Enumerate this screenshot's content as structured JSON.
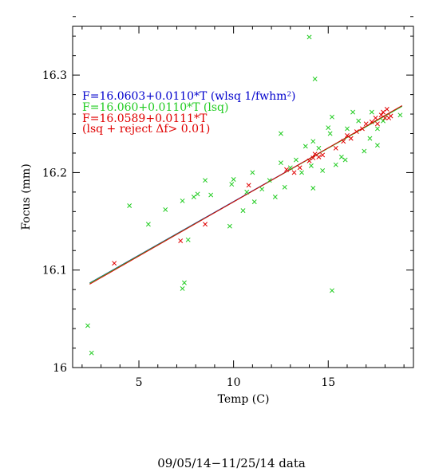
{
  "chart_data": {
    "type": "scatter",
    "title": "",
    "xlabel": "Temp (C)",
    "ylabel": "Focus (mm)",
    "caption": "09/05/14−11/25/14 data",
    "xlim": [
      1.5,
      19.5
    ],
    "ylim": [
      16.0,
      16.35
    ],
    "x_ticks": [
      5,
      10,
      15
    ],
    "x_tick_labels": [
      "5",
      "10",
      "15"
    ],
    "y_ticks": [
      16.0,
      16.1,
      16.2,
      16.3
    ],
    "y_tick_labels": [
      "16",
      "16.1",
      "16.2",
      "16.3"
    ],
    "x_minor_step": 1,
    "y_minor_step": 0.02,
    "grid": false,
    "legend_position": "top-left",
    "legend": [
      {
        "text": "F=16.0603+0.0110*T (wlsq 1/fwhm²)",
        "color": "#0000cc"
      },
      {
        "text": "F=16.060+0.0110*T (lsq)",
        "color": "#22cc22"
      },
      {
        "text": "F=16.0589+0.0111*T",
        "color": "#e00000"
      },
      {
        "text": "(lsq + reject Δf> 0.01)",
        "color": "#e00000"
      }
    ],
    "lines": [
      {
        "intercept": 16.0603,
        "slope": 0.011,
        "color": "#0000cc",
        "x_range": [
          2.4,
          18.9
        ]
      },
      {
        "intercept": 16.06,
        "slope": 0.011,
        "color": "#22cc22",
        "x_range": [
          2.4,
          18.9
        ]
      },
      {
        "intercept": 16.0589,
        "slope": 0.0111,
        "color": "#e00000",
        "x_range": [
          2.4,
          18.9
        ]
      }
    ],
    "series": [
      {
        "marker": "x",
        "color": "#22cc22",
        "points": [
          [
            2.3,
            16.043
          ],
          [
            2.5,
            16.015
          ],
          [
            4.5,
            16.166
          ],
          [
            5.5,
            16.147
          ],
          [
            6.4,
            16.162
          ],
          [
            7.3,
            16.081
          ],
          [
            7.4,
            16.087
          ],
          [
            7.3,
            16.171
          ],
          [
            7.6,
            16.131
          ],
          [
            7.9,
            16.175
          ],
          [
            8.1,
            16.178
          ],
          [
            8.5,
            16.192
          ],
          [
            8.8,
            16.177
          ],
          [
            9.8,
            16.145
          ],
          [
            9.9,
            16.188
          ],
          [
            10.0,
            16.193
          ],
          [
            10.5,
            16.161
          ],
          [
            10.7,
            16.18
          ],
          [
            11.0,
            16.2
          ],
          [
            11.1,
            16.17
          ],
          [
            11.5,
            16.183
          ],
          [
            11.9,
            16.192
          ],
          [
            12.2,
            16.175
          ],
          [
            12.5,
            16.24
          ],
          [
            12.5,
            16.21
          ],
          [
            12.7,
            16.185
          ],
          [
            13.0,
            16.205
          ],
          [
            13.3,
            16.213
          ],
          [
            13.6,
            16.2
          ],
          [
            13.8,
            16.227
          ],
          [
            14.0,
            16.339
          ],
          [
            14.1,
            16.207
          ],
          [
            14.2,
            16.184
          ],
          [
            14.2,
            16.232
          ],
          [
            14.3,
            16.296
          ],
          [
            14.5,
            16.225
          ],
          [
            14.7,
            16.202
          ],
          [
            15.0,
            16.246
          ],
          [
            15.1,
            16.24
          ],
          [
            15.2,
            16.079
          ],
          [
            15.2,
            16.257
          ],
          [
            15.4,
            16.208
          ],
          [
            15.7,
            16.216
          ],
          [
            15.9,
            16.213
          ],
          [
            16.0,
            16.245
          ],
          [
            16.3,
            16.262
          ],
          [
            16.6,
            16.253
          ],
          [
            16.9,
            16.222
          ],
          [
            17.2,
            16.235
          ],
          [
            17.3,
            16.262
          ],
          [
            17.6,
            16.228
          ],
          [
            17.6,
            16.245
          ],
          [
            17.9,
            16.253
          ],
          [
            18.8,
            16.259
          ]
        ]
      },
      {
        "marker": "x",
        "color": "#e00000",
        "points": [
          [
            3.7,
            16.107
          ],
          [
            7.2,
            16.13
          ],
          [
            8.5,
            16.147
          ],
          [
            10.8,
            16.187
          ],
          [
            12.8,
            16.203
          ],
          [
            13.2,
            16.2
          ],
          [
            13.5,
            16.205
          ],
          [
            14.0,
            16.212
          ],
          [
            14.2,
            16.215
          ],
          [
            14.3,
            16.219
          ],
          [
            14.5,
            16.216
          ],
          [
            14.7,
            16.218
          ],
          [
            15.4,
            16.225
          ],
          [
            15.8,
            16.232
          ],
          [
            16.0,
            16.238
          ],
          [
            16.2,
            16.235
          ],
          [
            16.5,
            16.242
          ],
          [
            16.8,
            16.245
          ],
          [
            17.0,
            16.25
          ],
          [
            17.3,
            16.252
          ],
          [
            17.5,
            16.256
          ],
          [
            17.6,
            16.25
          ],
          [
            17.8,
            16.259
          ],
          [
            17.9,
            16.262
          ],
          [
            18.0,
            16.256
          ],
          [
            18.1,
            16.265
          ],
          [
            18.2,
            16.256
          ],
          [
            18.3,
            16.258
          ]
        ]
      }
    ]
  }
}
